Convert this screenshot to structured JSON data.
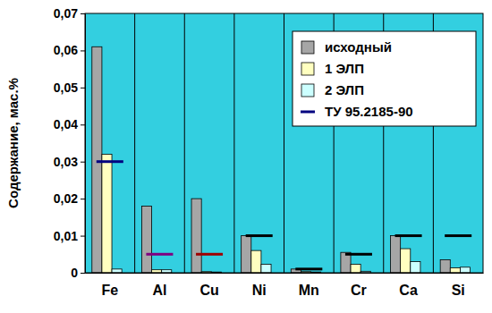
{
  "chart_data": {
    "type": "bar",
    "y_label": "Содержание, мас.%",
    "categories": [
      "Fe",
      "Al",
      "Cu",
      "Ni",
      "Mn",
      "Cr",
      "Ca",
      "Si"
    ],
    "series": [
      {
        "name": "исходный",
        "color": "#a6a6a6",
        "values": [
          0.061,
          0.018,
          0.02,
          0.01,
          0.001,
          0.0055,
          0.01,
          0.0035
        ]
      },
      {
        "name": "1 ЭЛП",
        "color": "#ffffc0",
        "values": [
          0.032,
          0.0008,
          0.0003,
          0.006,
          0.0003,
          0.0023,
          0.0065,
          0.0013
        ]
      },
      {
        "name": "2 ЭЛП",
        "color": "#ccffff",
        "values": [
          0.001,
          0.0008,
          0.0002,
          0.0023,
          0.0002,
          0.0004,
          0.003,
          0.0015
        ]
      },
      {
        "name": "ТУ 95.2185-90",
        "type": "scatter",
        "marker": "dash",
        "color": "#000080",
        "colors": [
          "#000080",
          "#800080",
          "#a00000",
          "#000000",
          "#000000",
          "#000000",
          "#000000",
          "#000000"
        ],
        "values": [
          0.03,
          0.005,
          0.005,
          0.01,
          0.001,
          0.005,
          0.01,
          0.01
        ]
      }
    ],
    "ylim": [
      0,
      0.07
    ],
    "yticks": [
      0,
      {
        "value": 0.01,
        "label": "0,01"
      },
      {
        "value": 0.02,
        "label": "0,02"
      },
      {
        "value": 0.03,
        "label": "0,03"
      },
      {
        "value": 0.04,
        "label": "0,04"
      },
      {
        "value": 0.05,
        "label": "0,05"
      },
      {
        "value": 0.06,
        "label": "0,06"
      },
      {
        "value": 0.07,
        "label": "0,07"
      }
    ],
    "grid": false,
    "legend": "upper right"
  }
}
